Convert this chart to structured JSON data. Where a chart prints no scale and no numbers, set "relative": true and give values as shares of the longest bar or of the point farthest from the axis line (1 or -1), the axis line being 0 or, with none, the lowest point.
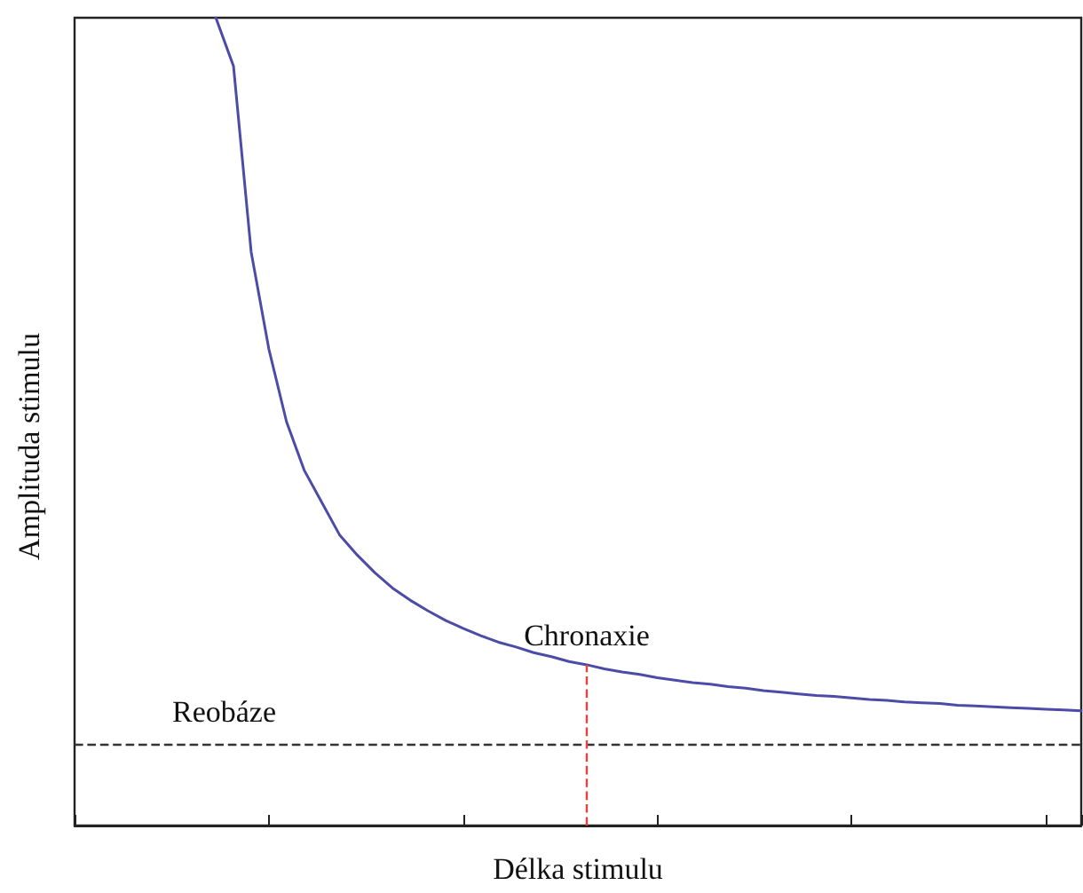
{
  "chart_data": {
    "type": "line",
    "relative": true,
    "xlabel": "Délka stimulu",
    "ylabel": "Amplituda stimulu",
    "tick_labels": false,
    "marker": "none",
    "line_style": "solid",
    "categories": [
      null,
      null,
      null,
      null,
      null,
      null,
      null,
      null,
      null,
      null,
      null,
      null,
      null,
      null,
      null,
      null,
      null,
      null,
      null,
      null,
      null,
      null,
      null,
      null,
      null,
      null,
      null,
      null,
      null,
      null,
      null,
      null,
      null,
      null,
      null,
      null,
      null,
      null,
      null,
      null,
      null,
      null,
      null,
      null,
      null,
      null,
      null,
      null,
      null,
      null,
      null,
      null,
      null,
      null,
      null,
      null,
      null,
      null
    ],
    "series": [
      {
        "color": "#4c4ca8",
        "values": [
          null,
          null,
          null,
          null,
          null,
          null,
          null,
          null,
          1.0,
          0.94,
          0.71,
          0.59,
          0.5,
          0.44,
          0.4,
          0.36,
          0.335,
          0.313,
          0.294,
          0.279,
          0.266,
          0.254,
          0.244,
          0.235,
          0.227,
          0.221,
          0.214,
          0.209,
          0.203,
          0.199,
          0.194,
          0.19,
          0.187,
          0.183,
          0.18,
          0.177,
          0.175,
          0.172,
          0.17,
          0.167,
          0.165,
          0.163,
          0.161,
          0.16,
          0.158,
          0.156,
          0.155,
          0.153,
          0.152,
          0.151,
          0.149,
          0.148,
          0.147,
          0.146,
          0.145,
          0.144,
          0.143,
          0.142
        ]
      }
    ],
    "ref_lines": [
      {
        "axis": "y",
        "value": 0.1,
        "label": "Reobáze",
        "color": "#333333",
        "line_style": "dashed"
      }
    ],
    "annotations": [
      "Chronaxie"
    ]
  }
}
